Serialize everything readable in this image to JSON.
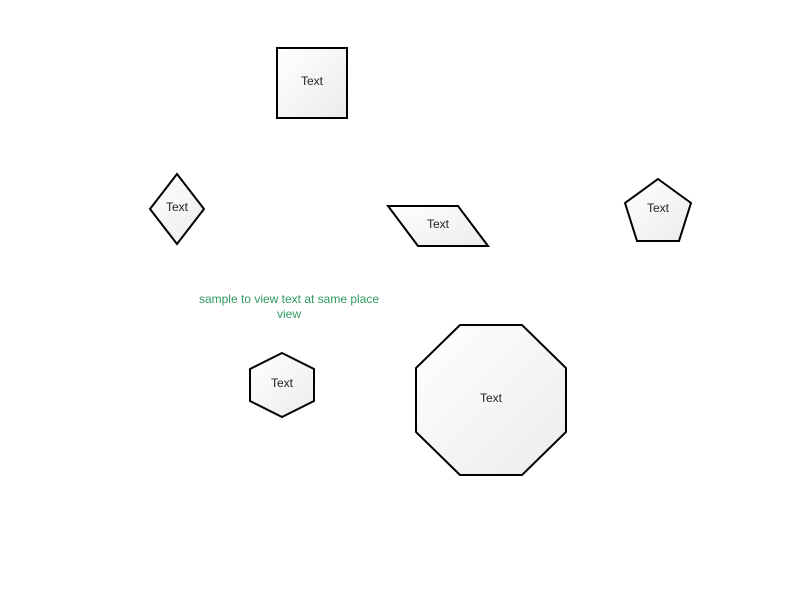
{
  "shapes": {
    "square": {
      "label": "Text"
    },
    "diamond": {
      "label": "Text"
    },
    "parallelogram": {
      "label": "Text"
    },
    "pentagon": {
      "label": "Text"
    },
    "hexagon": {
      "label": "Text"
    },
    "octagon": {
      "label": "Text"
    }
  },
  "note": {
    "text": "sample to view text at same place view",
    "color": "#2e9a5e"
  },
  "colors": {
    "stroke": "#000000",
    "fill_light": "#ffffff",
    "fill_dark": "#ececec"
  }
}
